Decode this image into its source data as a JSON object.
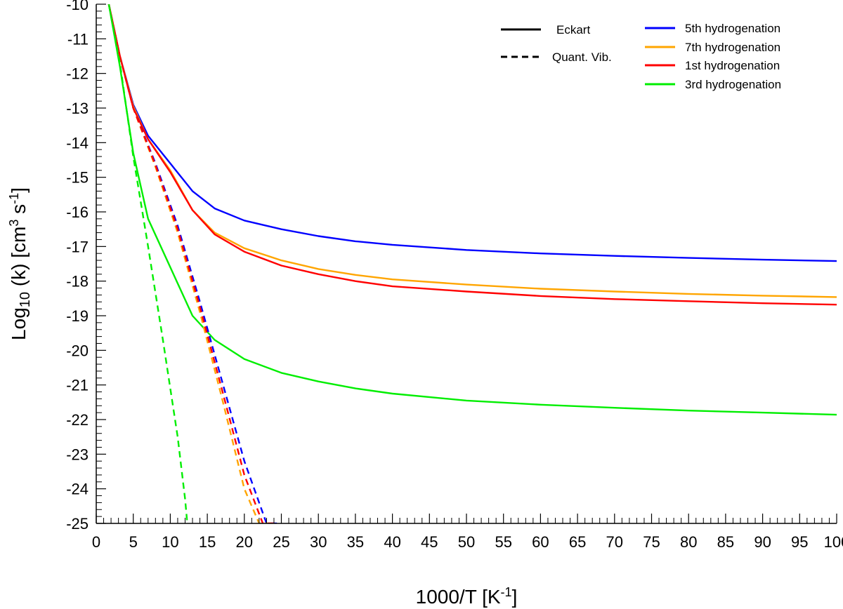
{
  "chart_data": {
    "type": "line",
    "title": "",
    "xlabel": {
      "main": "1000/T  [K",
      "sup": "-1",
      "end": "]"
    },
    "ylabel": {
      "pre": "Log",
      "sub": "10",
      "mid": " (k)  [cm",
      "sup1": "3",
      "mid2": " s",
      "sup2": "-1",
      "end": "]"
    },
    "xlim": [
      0,
      100
    ],
    "ylim": [
      -25,
      -10
    ],
    "xticks": [
      0,
      5,
      10,
      15,
      20,
      25,
      30,
      35,
      40,
      45,
      50,
      55,
      60,
      65,
      70,
      75,
      80,
      85,
      90,
      95,
      100
    ],
    "xtick_labels": [
      "0",
      "5",
      "10",
      "15",
      "20",
      "25",
      "30",
      "35",
      "40",
      "45",
      "50",
      "55",
      "60",
      "65",
      "70",
      "75",
      "80",
      "85",
      "90",
      "95",
      "100"
    ],
    "yticks": [
      -10,
      -11,
      -12,
      -13,
      -14,
      -15,
      -16,
      -17,
      -18,
      -19,
      -20,
      -21,
      -22,
      -23,
      -24,
      -25
    ],
    "ytick_labels": [
      "-10",
      "-11",
      "-12",
      "-13",
      "-14",
      "-15",
      "-16",
      "-17",
      "-18",
      "-19",
      "-20",
      "-21",
      "-22",
      "-23",
      "-24",
      "-25"
    ],
    "style_legend": [
      {
        "label": "Eckart",
        "dash": "solid"
      },
      {
        "label": "Quant. Vib.",
        "dash": "dashed"
      }
    ],
    "series": [
      {
        "name": "5th hydrogenation",
        "color": "#0000ff",
        "method": "Eckart",
        "dash": "solid",
        "x": [
          1.7,
          3.2,
          5,
          7,
          10,
          13,
          16,
          20,
          25,
          30,
          35,
          40,
          50,
          60,
          70,
          80,
          90,
          100
        ],
        "y": [
          -10.0,
          -11.5,
          -12.9,
          -13.8,
          -14.6,
          -15.4,
          -15.9,
          -16.25,
          -16.5,
          -16.7,
          -16.85,
          -16.95,
          -17.1,
          -17.2,
          -17.27,
          -17.33,
          -17.38,
          -17.42
        ]
      },
      {
        "name": "7th hydrogenation",
        "color": "#ffa500",
        "method": "Eckart",
        "dash": "solid",
        "x": [
          1.7,
          3.2,
          5,
          7,
          10,
          13,
          16,
          20,
          25,
          30,
          35,
          40,
          50,
          60,
          70,
          80,
          90,
          100
        ],
        "y": [
          -10.0,
          -11.5,
          -12.95,
          -13.9,
          -14.8,
          -15.95,
          -16.6,
          -17.05,
          -17.4,
          -17.65,
          -17.82,
          -17.95,
          -18.1,
          -18.22,
          -18.3,
          -18.37,
          -18.42,
          -18.46
        ]
      },
      {
        "name": "1st hydrogenation",
        "color": "#ff0000",
        "method": "Eckart",
        "dash": "solid",
        "x": [
          1.7,
          3.2,
          5,
          7,
          10,
          13,
          16,
          20,
          25,
          30,
          35,
          40,
          50,
          60,
          70,
          80,
          90,
          100
        ],
        "y": [
          -10.0,
          -11.5,
          -13.0,
          -13.9,
          -14.85,
          -15.95,
          -16.65,
          -17.15,
          -17.55,
          -17.8,
          -18.0,
          -18.15,
          -18.3,
          -18.43,
          -18.52,
          -18.58,
          -18.64,
          -18.68
        ]
      },
      {
        "name": "3rd hydrogenation",
        "color": "#00ee00",
        "method": "Eckart",
        "dash": "solid",
        "x": [
          1.7,
          3.2,
          5,
          7,
          10,
          13,
          16,
          20,
          25,
          30,
          35,
          40,
          50,
          60,
          70,
          80,
          90,
          100
        ],
        "y": [
          -10.0,
          -11.8,
          -14.3,
          -16.2,
          -17.6,
          -19.0,
          -19.7,
          -20.25,
          -20.65,
          -20.9,
          -21.1,
          -21.25,
          -21.45,
          -21.57,
          -21.66,
          -21.74,
          -21.8,
          -21.86
        ]
      },
      {
        "name": "5th hydrogenation",
        "color": "#0000ff",
        "method": "Quant. Vib.",
        "dash": "dashed",
        "x": [
          1.7,
          3.2,
          5,
          8,
          11,
          14,
          17,
          20,
          23,
          25
        ],
        "y": [
          -10.0,
          -11.5,
          -13.0,
          -14.6,
          -16.4,
          -18.6,
          -20.9,
          -23.2,
          -25.0,
          -25.0
        ]
      },
      {
        "name": "7th hydrogenation",
        "color": "#ffa500",
        "method": "Quant. Vib.",
        "dash": "dashed",
        "x": [
          1.7,
          3.2,
          5,
          8,
          11,
          14,
          17,
          20,
          22,
          24
        ],
        "y": [
          -10.0,
          -11.5,
          -13.0,
          -14.7,
          -16.6,
          -18.9,
          -21.4,
          -24.0,
          -25.0,
          -25.0
        ]
      },
      {
        "name": "1st hydrogenation",
        "color": "#ff0000",
        "method": "Quant. Vib.",
        "dash": "dashed",
        "x": [
          1.7,
          3.2,
          5,
          8,
          11,
          14,
          17,
          20,
          22.5,
          24
        ],
        "y": [
          -10.0,
          -11.5,
          -13.0,
          -14.65,
          -16.5,
          -18.75,
          -21.15,
          -23.6,
          -25.0,
          -25.0
        ]
      },
      {
        "name": "3rd hydrogenation",
        "color": "#00ee00",
        "method": "Quant. Vib.",
        "dash": "dashed",
        "x": [
          1.7,
          3.2,
          5,
          7,
          9,
          11,
          12,
          12.3
        ],
        "y": [
          -10.0,
          -11.7,
          -14.4,
          -17.0,
          -19.7,
          -22.5,
          -24.3,
          -25.0
        ]
      }
    ],
    "legend": [
      {
        "label": "5th hydrogenation",
        "color": "#0000ff"
      },
      {
        "label": "7th hydrogenation",
        "color": "#ffa500"
      },
      {
        "label": "1st hydrogenation",
        "color": "#ff0000"
      },
      {
        "label": "3rd hydrogenation",
        "color": "#00ee00"
      }
    ],
    "legend_position": "top-right",
    "grid": false
  }
}
